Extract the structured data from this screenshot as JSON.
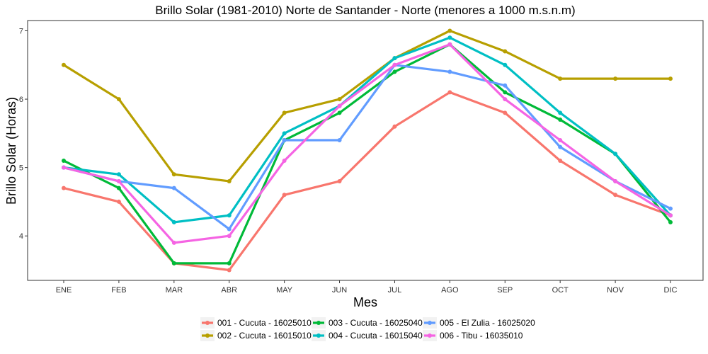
{
  "chart_data": {
    "type": "line",
    "title": "Brillo Solar (1981-2010) Norte de Santander - Norte (menores a 1000 m.s.n.m)",
    "xlabel": "Mes",
    "ylabel": "Brillo Solar (Horas)",
    "categories": [
      "ENE",
      "FEB",
      "MAR",
      "ABR",
      "MAY",
      "JUN",
      "JUL",
      "AGO",
      "SEP",
      "OCT",
      "NOV",
      "DIC"
    ],
    "ylim": [
      3.35,
      7.15
    ],
    "yticks": [
      4,
      5,
      6,
      7
    ],
    "grid": false,
    "legend_position": "bottom",
    "series": [
      {
        "name": "001 - Cucuta - 16025010",
        "color": "#F8766D",
        "values": [
          4.7,
          4.5,
          3.6,
          3.5,
          4.6,
          4.8,
          5.6,
          6.1,
          5.8,
          5.1,
          4.6,
          4.3
        ]
      },
      {
        "name": "002 - Cucuta - 16015010",
        "color": "#B79F00",
        "values": [
          6.5,
          6.0,
          4.9,
          4.8,
          5.8,
          6.0,
          6.6,
          7.0,
          6.7,
          6.3,
          6.3,
          6.3
        ]
      },
      {
        "name": "003 - Cucuta - 16025040",
        "color": "#00BA38",
        "values": [
          5.1,
          4.7,
          3.6,
          3.6,
          5.4,
          5.8,
          6.4,
          6.8,
          6.1,
          5.7,
          5.2,
          4.2
        ]
      },
      {
        "name": "004 - Cucuta - 16015040",
        "color": "#00BFC4",
        "values": [
          5.0,
          4.9,
          4.2,
          4.3,
          5.5,
          5.9,
          6.6,
          6.9,
          6.5,
          5.8,
          5.2,
          4.3
        ]
      },
      {
        "name": "005 - El Zulia - 16025020",
        "color": "#619CFF",
        "values": [
          5.0,
          4.8,
          4.7,
          4.1,
          5.4,
          5.4,
          6.5,
          6.4,
          6.2,
          5.3,
          4.8,
          4.4
        ]
      },
      {
        "name": "006 - Tibu - 16035010",
        "color": "#F564E3",
        "values": [
          5.0,
          4.8,
          3.9,
          4.0,
          5.1,
          5.9,
          6.5,
          6.8,
          6.0,
          5.4,
          4.8,
          4.3
        ]
      }
    ],
    "legend_layout": [
      [
        "001 - Cucuta - 16025010",
        "003 - Cucuta - 16025040",
        "005 - El Zulia - 16025020"
      ],
      [
        "002 - Cucuta - 16015010",
        "004 - Cucuta - 16015040",
        "006 - Tibu - 16035010"
      ]
    ]
  }
}
